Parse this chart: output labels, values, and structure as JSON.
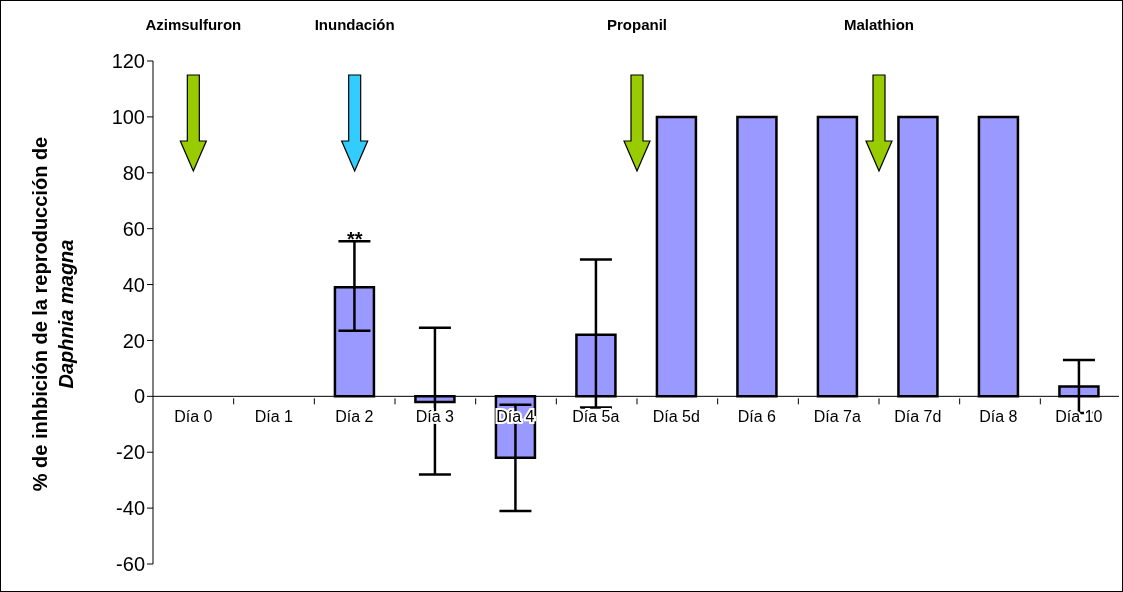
{
  "chart_data": {
    "type": "bar",
    "ylabel": "% de inhbición de la reproducción de Daphnia magna",
    "categories": [
      "Día 0",
      "Día 1",
      "Día 2",
      "Día 3",
      "Día 4",
      "Día 5a",
      "Día 5d",
      "Día 6",
      "Día 7a",
      "Día 7d",
      "Día 8",
      "Día 10"
    ],
    "values": [
      null,
      null,
      39,
      -2,
      -22,
      22,
      100,
      100,
      100,
      100,
      100,
      3.5
    ],
    "errors": [
      null,
      null,
      [
        23.5,
        55.5
      ],
      [
        -28,
        24.5
      ],
      [
        -41,
        -3
      ],
      [
        -4,
        49
      ],
      null,
      null,
      null,
      null,
      null,
      [
        -6,
        13
      ]
    ],
    "color": "#9999ff",
    "ylim": [
      -60,
      120
    ],
    "yticks": [
      -60,
      -40,
      -20,
      0,
      20,
      40,
      60,
      80,
      100,
      120
    ],
    "grid": false,
    "annotations": [
      "Azimsulfuron",
      "Inundación",
      "Propanil",
      "Malathion",
      {
        "text": "**",
        "x": "Día 2",
        "y": 57
      }
    ]
  }
}
